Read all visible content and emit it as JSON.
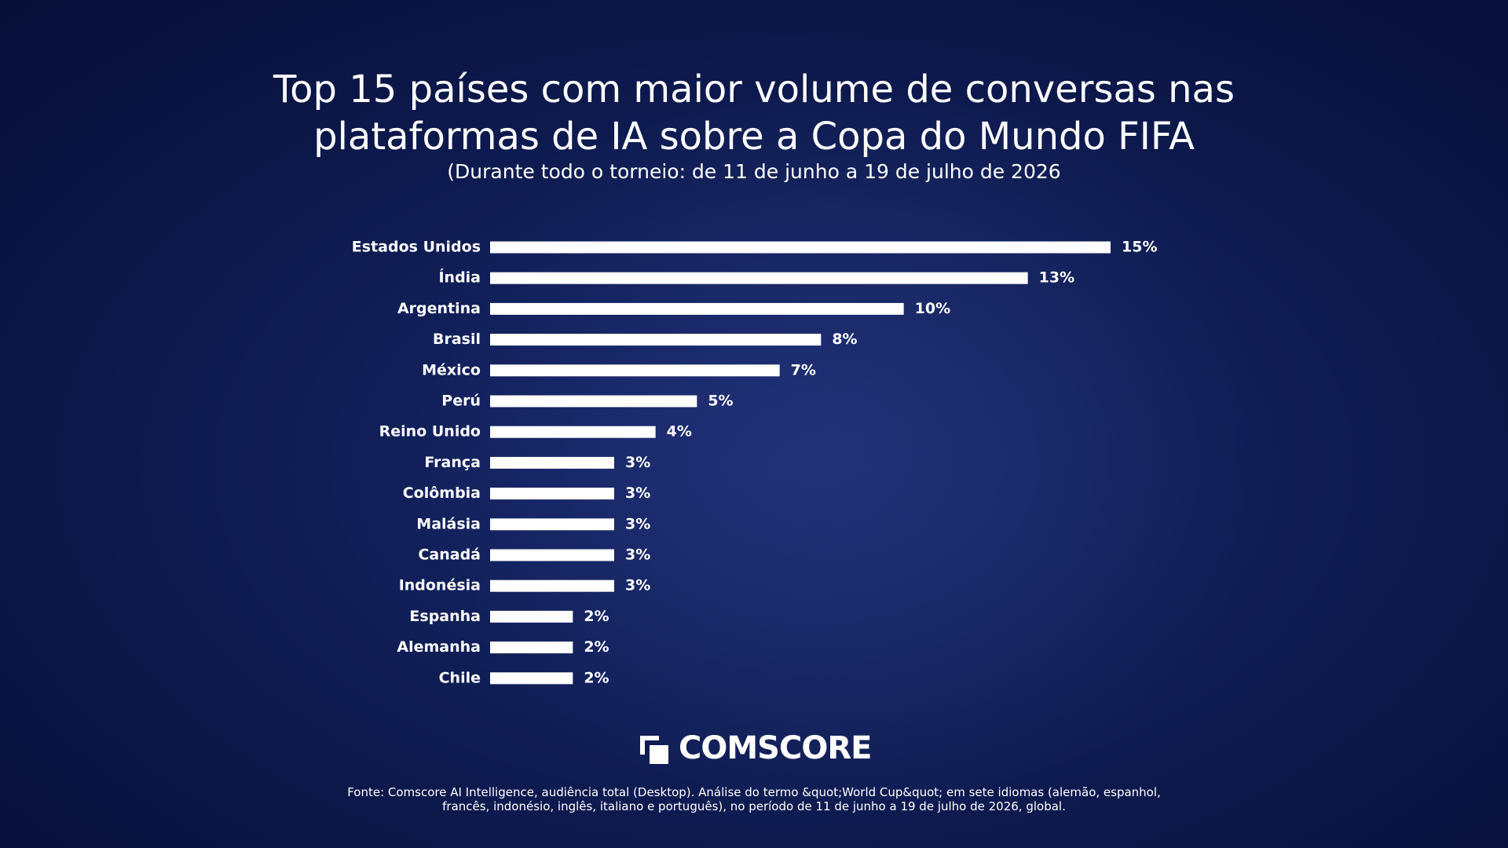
{
  "chart_data": {
    "type": "bar",
    "orientation": "horizontal",
    "title": "Top 15 países com maior volume de conversas nas plataformas de IA sobre a Copa do Mundo FIFA",
    "subtitle": "(Durante todo o torneio: de 11 de junho a 19 de julho de 2026",
    "categories": [
      "Estados Unidos",
      "Índia",
      "Argentina",
      "Brasil",
      "México",
      "Perú",
      "Reino Unido",
      "França",
      "Colômbia",
      "Malásia",
      "Canadá",
      "Indonésia",
      "Espanha",
      "Alemanha",
      "Chile"
    ],
    "values": [
      15,
      13,
      10,
      8,
      7,
      5,
      4,
      3,
      3,
      3,
      3,
      3,
      2,
      2,
      2
    ],
    "value_labels": [
      "15%",
      "13%",
      "10%",
      "8%",
      "7%",
      "5%",
      "4%",
      "3%",
      "3%",
      "3%",
      "3%",
      "3%",
      "2%",
      "2%",
      "2%"
    ],
    "color": "#ffffff",
    "logo": "COMSCORE",
    "source": "Fonte: Comscore AI Intelligence, audiência total (Desktop). Análise do termo &quot;World Cup&quot; em sete idiomas (alemão, espanhol, francês, indonésio, inglês, italiano e português), no período de 11 de junho a 19 de julho de 2026, global."
  }
}
